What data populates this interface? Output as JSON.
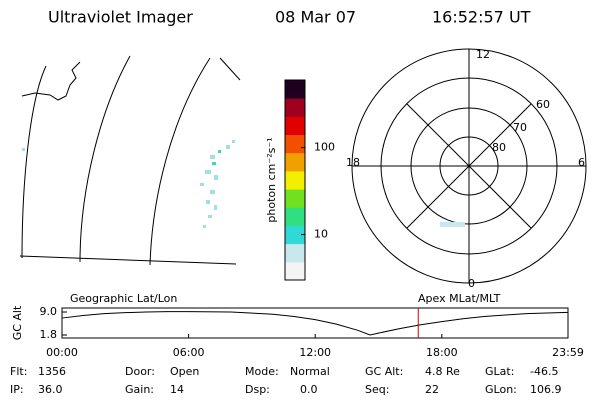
{
  "header": {
    "title": "Ultraviolet Imager",
    "date": "08 Mar 07",
    "time": "16:52:57 UT"
  },
  "colorbar": {
    "label": "photon cm⁻²s⁻¹",
    "log": true,
    "lim": [
      3,
      600
    ],
    "ticks": [
      10,
      100
    ],
    "colors": [
      "#f4f4f4",
      "#c8e8ec",
      "#30d8d8",
      "#30e080",
      "#70e020",
      "#f0f000",
      "#f0a000",
      "#f05000",
      "#e00000",
      "#a00020",
      "#200020"
    ]
  },
  "polar": {
    "mlt_labels": [
      "12",
      "18",
      "6",
      "0"
    ],
    "lat_labels": [
      "60",
      "70",
      "80"
    ]
  },
  "timeline": {
    "ylabel": "GC Alt",
    "left_label": "Geographic Lat/Lon",
    "right_label": "Apex MLat/MLT",
    "xlim": [
      0,
      23.98
    ],
    "ylim": [
      0.86,
      10.25
    ],
    "xticks": [
      {
        "value": 0,
        "label": "00:00"
      },
      {
        "value": 6,
        "label": "06:00"
      },
      {
        "value": 12,
        "label": "12:00"
      },
      {
        "value": 18,
        "label": "18:00"
      },
      {
        "value": 23.98,
        "label": "23:59"
      }
    ],
    "yticks": [
      {
        "value": 9.0,
        "label": "9.0"
      },
      {
        "value": 1.8,
        "label": "1.8"
      }
    ],
    "x": [
      0,
      1,
      2,
      3,
      4,
      5,
      6,
      8,
      10,
      11,
      12,
      13,
      14,
      14.6,
      15,
      16,
      17,
      18,
      19,
      20,
      22,
      23.98
    ],
    "values": [
      7.1,
      7.9,
      8.5,
      8.8,
      9.0,
      9.1,
      9.1,
      9.0,
      8.3,
      7.6,
      6.6,
      5.2,
      3.3,
      1.8,
      2.4,
      3.8,
      5.0,
      6.0,
      6.9,
      7.6,
      8.5,
      8.9
    ],
    "marker": 16.8825,
    "marker_color": "#cc0000"
  },
  "footer": [
    [
      "Flt:",
      "1356"
    ],
    [
      "Door:",
      "Open"
    ],
    [
      "Mode:",
      "Normal"
    ],
    [
      "GC Alt:",
      "4.8 Re"
    ],
    [
      "GLat:",
      "-46.5"
    ],
    [
      "IP:",
      "36.0"
    ],
    [
      "Gain:",
      "14"
    ],
    [
      "Dsp:",
      "0.0"
    ],
    [
      "Seq:",
      "22"
    ],
    [
      "GLon:",
      "106.9"
    ]
  ]
}
